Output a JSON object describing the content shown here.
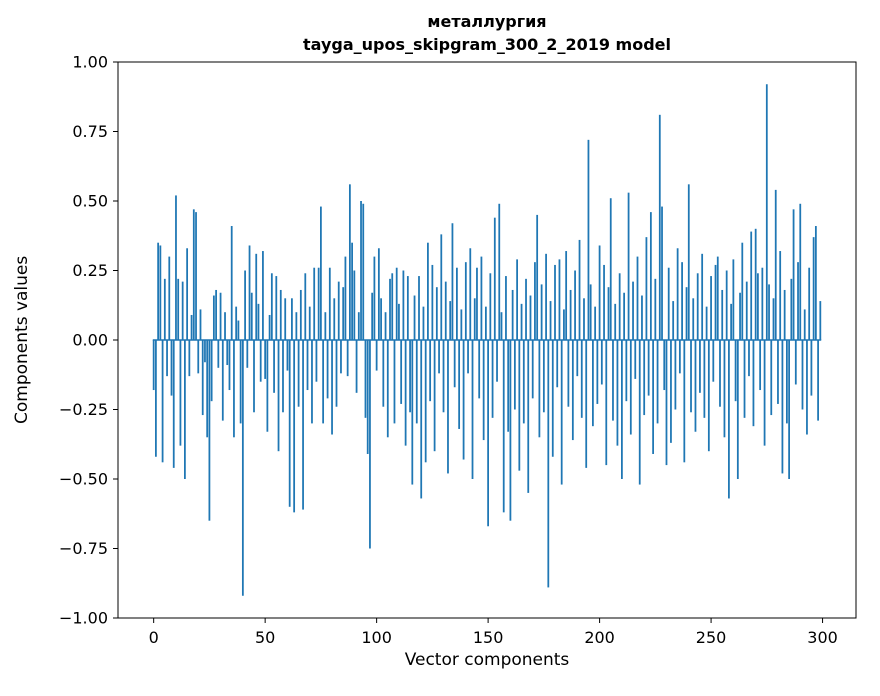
{
  "chart_data": {
    "type": "bar",
    "title": "металлургия",
    "subtitle": "tayga_upos_skipgram_300_2_2019 model",
    "xlabel": "Vector components",
    "ylabel": "Components values",
    "bar_color": "#1f77b4",
    "xlim": [
      -16,
      315
    ],
    "ylim": [
      -1.0,
      1.0
    ],
    "grid": false,
    "legend": "none",
    "xticks": [
      {
        "v": 0,
        "label": "0"
      },
      {
        "v": 50,
        "label": "50"
      },
      {
        "v": 100,
        "label": "100"
      },
      {
        "v": 150,
        "label": "150"
      },
      {
        "v": 200,
        "label": "200"
      },
      {
        "v": 250,
        "label": "250"
      },
      {
        "v": 300,
        "label": "300"
      }
    ],
    "yticks": [
      {
        "v": 1.0,
        "label": "1.00"
      },
      {
        "v": 0.75,
        "label": "0.75"
      },
      {
        "v": 0.5,
        "label": "0.50"
      },
      {
        "v": 0.25,
        "label": "0.25"
      },
      {
        "v": 0.0,
        "label": "0.00"
      },
      {
        "v": -0.25,
        "label": "−0.25"
      },
      {
        "v": -0.5,
        "label": "−0.50"
      },
      {
        "v": -0.75,
        "label": "−0.75"
      },
      {
        "v": -1.0,
        "label": "−1.00"
      }
    ],
    "values": [
      -0.18,
      -0.42,
      0.35,
      0.34,
      -0.44,
      0.22,
      -0.13,
      0.3,
      -0.2,
      -0.46,
      0.52,
      0.22,
      -0.38,
      0.21,
      -0.5,
      0.33,
      -0.13,
      0.09,
      0.47,
      0.46,
      -0.12,
      0.11,
      -0.27,
      -0.08,
      -0.35,
      -0.65,
      -0.22,
      0.16,
      0.18,
      -0.1,
      0.17,
      -0.29,
      0.1,
      -0.09,
      -0.18,
      0.41,
      -0.35,
      0.12,
      0.07,
      -0.3,
      -0.92,
      0.25,
      -0.1,
      0.34,
      0.17,
      -0.26,
      0.31,
      0.13,
      -0.15,
      0.32,
      -0.14,
      -0.33,
      0.09,
      0.24,
      -0.19,
      0.23,
      -0.4,
      0.18,
      -0.26,
      0.15,
      -0.11,
      -0.6,
      0.15,
      -0.62,
      0.1,
      -0.24,
      0.18,
      -0.61,
      0.24,
      -0.18,
      0.12,
      -0.3,
      0.26,
      -0.15,
      0.26,
      0.48,
      -0.3,
      0.1,
      -0.21,
      0.26,
      -0.34,
      0.15,
      -0.24,
      0.21,
      -0.12,
      0.19,
      0.3,
      -0.13,
      0.56,
      0.35,
      0.25,
      -0.19,
      0.1,
      0.5,
      0.49,
      -0.28,
      -0.41,
      -0.75,
      0.17,
      0.3,
      -0.11,
      0.33,
      0.15,
      -0.24,
      0.1,
      -0.35,
      0.22,
      0.24,
      -0.3,
      0.26,
      0.13,
      -0.23,
      0.25,
      -0.38,
      0.23,
      -0.26,
      -0.52,
      0.16,
      -0.3,
      0.23,
      -0.57,
      0.12,
      -0.44,
      0.35,
      -0.22,
      0.27,
      -0.4,
      0.19,
      -0.12,
      0.38,
      -0.26,
      0.21,
      -0.48,
      0.14,
      0.42,
      -0.17,
      0.26,
      -0.32,
      0.11,
      -0.43,
      0.28,
      -0.12,
      0.33,
      -0.5,
      0.15,
      0.26,
      -0.21,
      0.3,
      -0.36,
      0.12,
      -0.67,
      0.24,
      -0.28,
      0.44,
      -0.15,
      0.49,
      0.1,
      -0.62,
      0.23,
      -0.33,
      -0.65,
      0.18,
      -0.25,
      0.29,
      -0.47,
      0.13,
      -0.3,
      0.22,
      -0.55,
      0.16,
      -0.21,
      0.28,
      0.45,
      -0.35,
      0.2,
      -0.26,
      0.31,
      -0.89,
      0.14,
      -0.42,
      0.27,
      -0.17,
      0.29,
      -0.52,
      0.11,
      0.32,
      -0.24,
      0.18,
      -0.36,
      0.25,
      -0.13,
      0.36,
      -0.28,
      0.15,
      -0.46,
      0.72,
      0.2,
      -0.31,
      0.12,
      -0.23,
      0.34,
      -0.16,
      0.27,
      -0.45,
      0.19,
      0.51,
      -0.29,
      0.13,
      -0.38,
      0.24,
      -0.5,
      0.17,
      -0.22,
      0.53,
      -0.34,
      0.21,
      -0.14,
      0.3,
      -0.52,
      0.16,
      -0.27,
      0.37,
      -0.2,
      0.46,
      -0.41,
      0.22,
      -0.3,
      0.81,
      0.48,
      -0.18,
      -0.45,
      0.26,
      -0.37,
      0.14,
      -0.25,
      0.33,
      -0.12,
      0.28,
      -0.44,
      0.19,
      0.56,
      -0.26,
      0.15,
      -0.33,
      0.24,
      -0.19,
      0.31,
      -0.28,
      0.12,
      -0.4,
      0.23,
      -0.15,
      0.27,
      0.3,
      -0.24,
      0.18,
      -0.35,
      0.25,
      -0.57,
      0.13,
      0.29,
      -0.22,
      -0.5,
      0.17,
      0.35,
      -0.28,
      0.21,
      -0.13,
      0.39,
      -0.31,
      0.4,
      0.24,
      -0.18,
      0.26,
      -0.38,
      0.92,
      0.2,
      -0.27,
      0.15,
      0.54,
      -0.23,
      0.32,
      -0.48,
      0.18,
      -0.3,
      -0.5,
      0.22,
      0.47,
      -0.16,
      0.28,
      0.49,
      -0.25,
      0.11,
      -0.34,
      0.26,
      -0.2,
      0.37,
      0.41,
      -0.29,
      0.14
    ]
  }
}
